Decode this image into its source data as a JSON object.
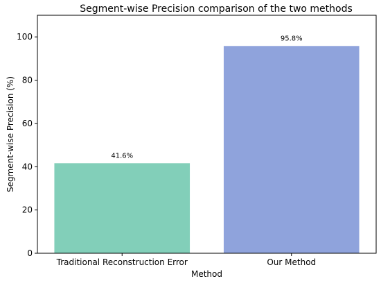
{
  "chart_data": {
    "type": "bar",
    "title": "Segment-wise Precision comparison of the two methods",
    "xlabel": "Method",
    "ylabel": "Segment-wise Precision (%)",
    "categories": [
      "Traditional Reconstruction Error",
      "Our Method"
    ],
    "values": [
      41.6,
      95.8
    ],
    "data_labels": [
      "41.6%",
      "95.8%"
    ],
    "colors": [
      "#82cfb9",
      "#8fa3dc"
    ],
    "ylim": [
      0,
      110
    ],
    "yticks": [
      0,
      20,
      40,
      60,
      80,
      100
    ],
    "grid": false,
    "legend": "none"
  }
}
